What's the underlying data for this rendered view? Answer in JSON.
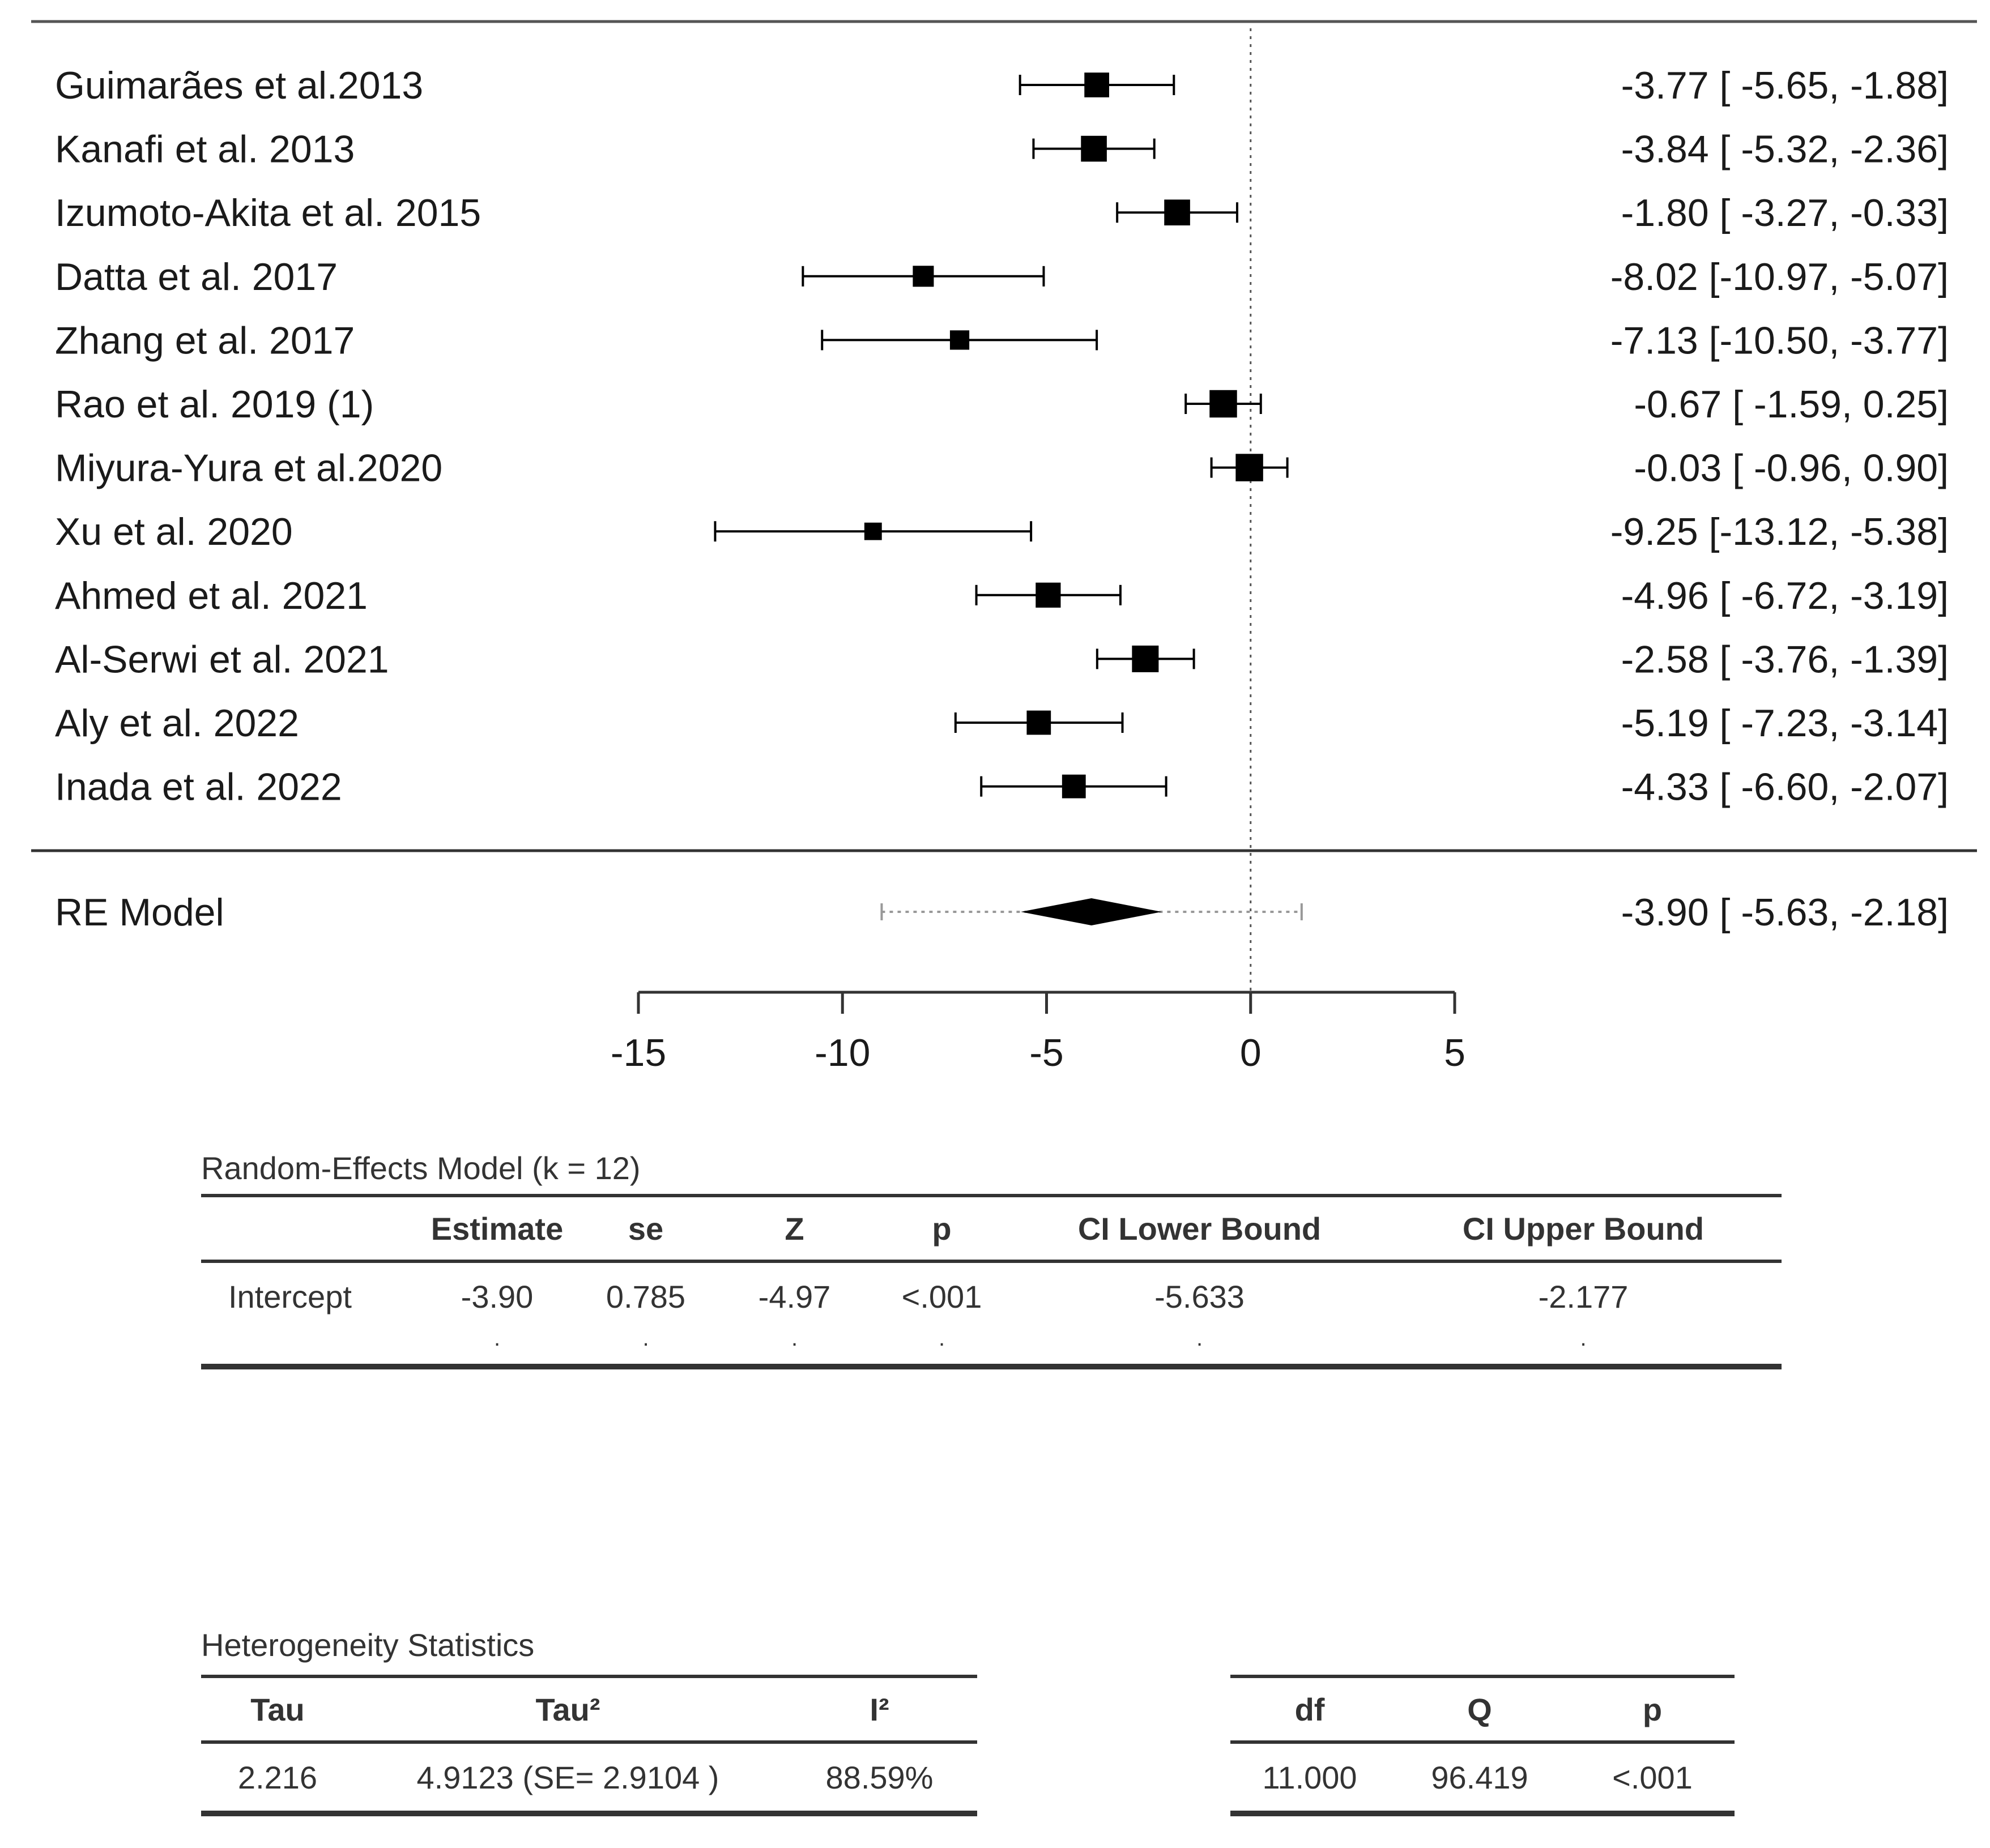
{
  "chart_data": {
    "type": "forest",
    "title": "",
    "xlabel": "",
    "xlim": [
      -15,
      5
    ],
    "x_ticks": [
      "-15",
      "-10",
      "-5",
      "0",
      "5"
    ],
    "reference_line": 0,
    "studies": [
      {
        "label": "Guimarães et al.2013",
        "estimate": -3.77,
        "lower": -5.65,
        "upper": -1.88,
        "weight": 8.3,
        "ci_text": "-3.77 [ -5.65, -1.88]"
      },
      {
        "label": "Kanafi et al. 2013",
        "estimate": -3.84,
        "lower": -5.32,
        "upper": -2.36,
        "weight": 8.7,
        "ci_text": "-3.84 [ -5.32, -2.36]"
      },
      {
        "label": "Izumoto-Akita et al. 2015",
        "estimate": -1.8,
        "lower": -3.27,
        "upper": -0.33,
        "weight": 8.7,
        "ci_text": "-1.80 [ -3.27, -0.33]"
      },
      {
        "label": "Datta et al. 2017",
        "estimate": -8.02,
        "lower": -10.97,
        "upper": -5.07,
        "weight": 6.9,
        "ci_text": "-8.02 [-10.97, -5.07]"
      },
      {
        "label": "Zhang et al. 2017",
        "estimate": -7.13,
        "lower": -10.5,
        "upper": -3.77,
        "weight": 6.3,
        "ci_text": "-7.13 [-10.50, -3.77]"
      },
      {
        "label": "Rao et al. 2019 (1)",
        "estimate": -0.67,
        "lower": -1.59,
        "upper": 0.25,
        "weight": 9.3,
        "ci_text": "-0.67 [ -1.59,  0.25]"
      },
      {
        "label": "Miyura-Yura et al.2020",
        "estimate": -0.03,
        "lower": -0.96,
        "upper": 0.9,
        "weight": 9.3,
        "ci_text": "-0.03 [ -0.96,  0.90]"
      },
      {
        "label": "Xu et al. 2020",
        "estimate": -9.25,
        "lower": -13.12,
        "upper": -5.38,
        "weight": 5.6,
        "ci_text": "-9.25 [-13.12, -5.38]"
      },
      {
        "label": "Ahmed et al. 2021",
        "estimate": -4.96,
        "lower": -6.72,
        "upper": -3.19,
        "weight": 8.4,
        "ci_text": "-4.96 [ -6.72, -3.19]"
      },
      {
        "label": "Al-Serwi et al. 2021",
        "estimate": -2.58,
        "lower": -3.76,
        "upper": -1.39,
        "weight": 9.0,
        "ci_text": "-2.58 [ -3.76, -1.39]"
      },
      {
        "label": "Aly et al. 2022",
        "estimate": -5.19,
        "lower": -7.23,
        "upper": -3.14,
        "weight": 8.1,
        "ci_text": "-5.19 [ -7.23, -3.14]"
      },
      {
        "label": "Inada et al. 2022",
        "estimate": -4.33,
        "lower": -6.6,
        "upper": -2.07,
        "weight": 7.9,
        "ci_text": "-4.33 [ -6.60, -2.07]"
      }
    ],
    "summary": {
      "label": "RE Model",
      "estimate": -3.9,
      "lower": -5.63,
      "upper": -2.18,
      "pi_lower": -9.04,
      "pi_upper": 1.25,
      "ci_text": "-3.90 [ -5.63, -2.18]"
    }
  },
  "re_table": {
    "title": "Random-Effects Model (k = 12)",
    "headers": [
      "",
      "Estimate",
      "se",
      "Z",
      "p",
      "CI Lower Bound",
      "CI Upper Bound"
    ],
    "row": {
      "label": "Intercept",
      "values": [
        "-3.90",
        "0.785",
        "-4.97",
        "<.001",
        "-5.633",
        "-2.177"
      ]
    },
    "dots": [
      ".",
      ".",
      ".",
      ".",
      ".",
      "."
    ]
  },
  "heterogeneity": {
    "title": "Heterogeneity Statistics",
    "left_headers": [
      "Tau",
      "Tau²",
      "I²"
    ],
    "left_values": [
      "2.216",
      "4.9123 (SE= 2.9104 )",
      "88.59%"
    ],
    "right_headers": [
      "df",
      "Q",
      "p"
    ],
    "right_values": [
      "11.000",
      "96.419",
      "<.001"
    ]
  },
  "colors": {
    "ink": "#000000",
    "text": "#1a1a1a",
    "table": "#333333",
    "grey_line": "#555555",
    "dotted": "#999999"
  }
}
